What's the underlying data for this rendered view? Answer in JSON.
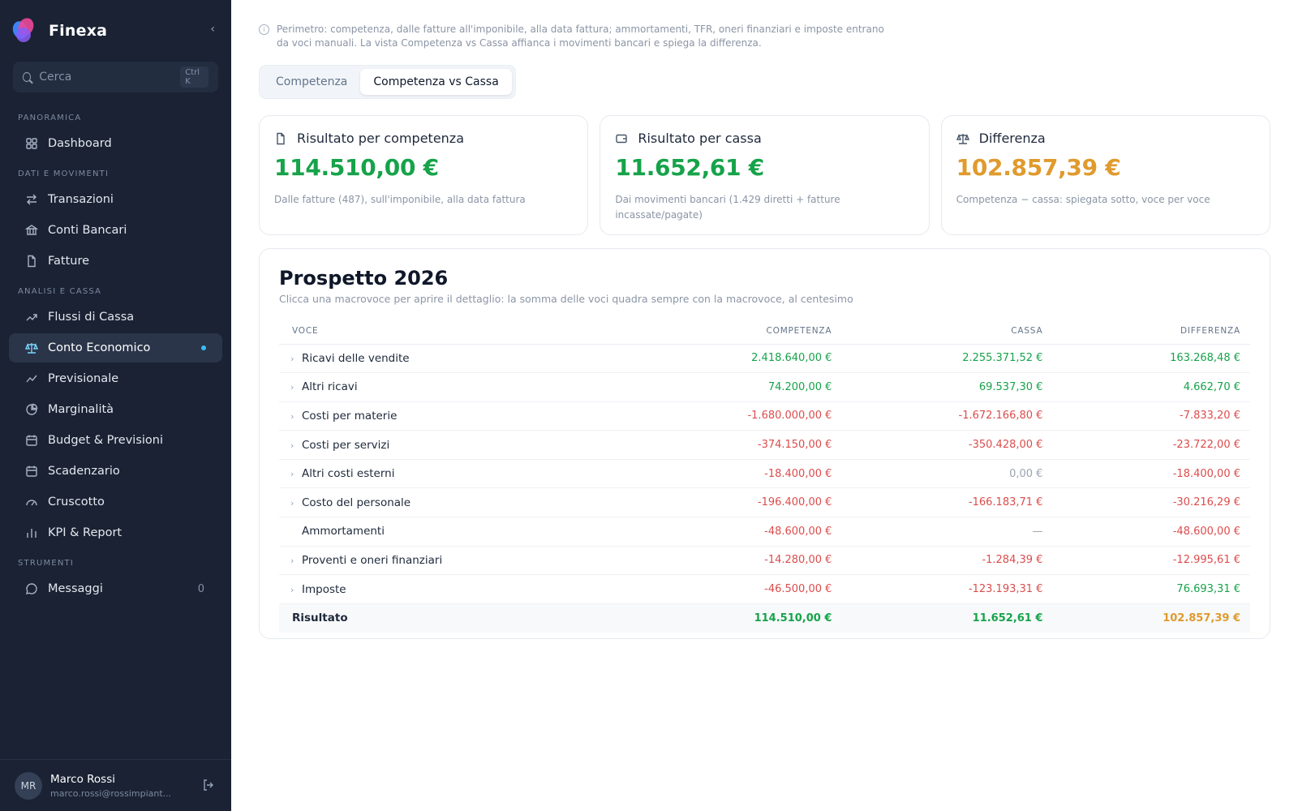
{
  "app": {
    "name": "Finexa"
  },
  "search": {
    "placeholder": "Cerca",
    "shortcut": "Ctrl K"
  },
  "sidebar": {
    "sections": {
      "panoramica": "PANORAMICA",
      "dati": "DATI E MOVIMENTI",
      "analisi": "ANALISI E CASSA",
      "strumenti": "STRUMENTI"
    },
    "items": {
      "dashboard": "Dashboard",
      "transazioni": "Transazioni",
      "conti": "Conti Bancari",
      "fatture": "Fatture",
      "flussi": "Flussi di Cassa",
      "conto": "Conto Economico",
      "previsionale": "Previsionale",
      "marginalita": "Marginalità",
      "budget": "Budget & Previsioni",
      "scadenzario": "Scadenzario",
      "cruscotto": "Cruscotto",
      "kpi": "KPI & Report",
      "messaggi": "Messaggi",
      "messaggi_count": "0"
    }
  },
  "user": {
    "initials": "MR",
    "name": "Marco Rossi",
    "email": "marco.rossi@rossimpiant..."
  },
  "info": "Perimetro: competenza, dalle fatture all'imponibile, alla data fattura; ammortamenti, TFR, oneri finanziari e imposte entrano da voci manuali. La vista Competenza vs Cassa affianca i movimenti bancari e spiega la differenza.",
  "tabs": {
    "competenza": "Competenza",
    "vs_cassa": "Competenza vs Cassa"
  },
  "cards": {
    "competenza": {
      "title": "Risultato per competenza",
      "value": "114.510,00 €",
      "note": "Dalle fatture (487), sull'imponibile, alla data fattura"
    },
    "cassa": {
      "title": "Risultato per cassa",
      "value": "11.652,61 €",
      "note": "Dai movimenti bancari (1.429 diretti + fatture incassate/pagate)"
    },
    "differenza": {
      "title": "Differenza",
      "value": "102.857,39 €",
      "note": "Competenza − cassa: spiegata sotto, voce per voce"
    }
  },
  "prospetto": {
    "title": "Prospetto 2026",
    "subtitle": "Clicca una macrovoce per aprire il dettaglio: la somma delle voci quadra sempre con la macrovoce, al centesimo",
    "headers": {
      "voce": "VOCE",
      "competenza": "COMPETENZA",
      "cassa": "CASSA",
      "differenza": "DIFFERENZA"
    },
    "rows": [
      {
        "voce": "Ricavi delle vendite",
        "expandable": true,
        "competenza": "2.418.640,00 €",
        "cassa": "2.255.371,52 €",
        "differenza": "163.268,48 €",
        "tone": [
          "green",
          "green",
          "green"
        ]
      },
      {
        "voce": "Altri ricavi",
        "expandable": true,
        "competenza": "74.200,00 €",
        "cassa": "69.537,30 €",
        "differenza": "4.662,70 €",
        "tone": [
          "green",
          "green",
          "green"
        ]
      },
      {
        "voce": "Costi per materie",
        "expandable": true,
        "competenza": "-1.680.000,00 €",
        "cassa": "-1.672.166,80 €",
        "differenza": "-7.833,20 €",
        "tone": [
          "red",
          "red",
          "red"
        ]
      },
      {
        "voce": "Costi per servizi",
        "expandable": true,
        "competenza": "-374.150,00 €",
        "cassa": "-350.428,00 €",
        "differenza": "-23.722,00 €",
        "tone": [
          "red",
          "red",
          "red"
        ]
      },
      {
        "voce": "Altri costi esterni",
        "expandable": true,
        "competenza": "-18.400,00 €",
        "cassa": "0,00 €",
        "differenza": "-18.400,00 €",
        "tone": [
          "red",
          "muted",
          "red"
        ]
      },
      {
        "voce": "Costo del personale",
        "expandable": true,
        "competenza": "-196.400,00 €",
        "cassa": "-166.183,71 €",
        "differenza": "-30.216,29 €",
        "tone": [
          "red",
          "red",
          "red"
        ]
      },
      {
        "voce": "Ammortamenti",
        "expandable": false,
        "competenza": "-48.600,00 €",
        "cassa": "—",
        "differenza": "-48.600,00 €",
        "tone": [
          "red",
          "muted",
          "red"
        ]
      },
      {
        "voce": "Proventi e oneri finanziari",
        "expandable": true,
        "competenza": "-14.280,00 €",
        "cassa": "-1.284,39 €",
        "differenza": "-12.995,61 €",
        "tone": [
          "red",
          "red",
          "red"
        ]
      },
      {
        "voce": "Imposte",
        "expandable": true,
        "competenza": "-46.500,00 €",
        "cassa": "-123.193,31 €",
        "differenza": "76.693,31 €",
        "tone": [
          "red",
          "red",
          "green"
        ]
      }
    ],
    "total": {
      "voce": "Risultato",
      "competenza": "114.510,00 €",
      "cassa": "11.652,61 €",
      "differenza": "102.857,39 €"
    }
  }
}
